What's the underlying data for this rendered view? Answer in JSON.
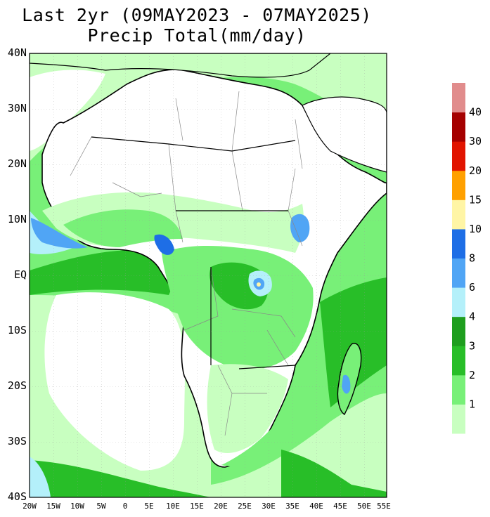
{
  "title": {
    "line1": "Last 2yr (09MAY2023 - 07MAY2025)",
    "line2": "Precip Total(mm/day)"
  },
  "axes": {
    "lat_labels": [
      "40N",
      "30N",
      "20N",
      "10N",
      "EQ",
      "10S",
      "20S",
      "30S",
      "40S"
    ],
    "lon_labels": [
      "20W",
      "15W",
      "10W",
      "5W",
      "0",
      "5E",
      "10E",
      "15E",
      "20E",
      "25E",
      "30E",
      "35E",
      "40E",
      "45E",
      "50E",
      "55E"
    ]
  },
  "colorbar": {
    "labels": [
      "1",
      "2",
      "3",
      "4",
      "6",
      "8",
      "10",
      "15",
      "20",
      "30",
      "40"
    ],
    "colors": [
      "#c8ffc0",
      "#78f078",
      "#28be28",
      "#1e9e1e",
      "#b4f0fa",
      "#50a5f5",
      "#1e6ee6",
      "#fff5a5",
      "#ffa000",
      "#e11400",
      "#a50000",
      "#e18c8c"
    ]
  }
}
